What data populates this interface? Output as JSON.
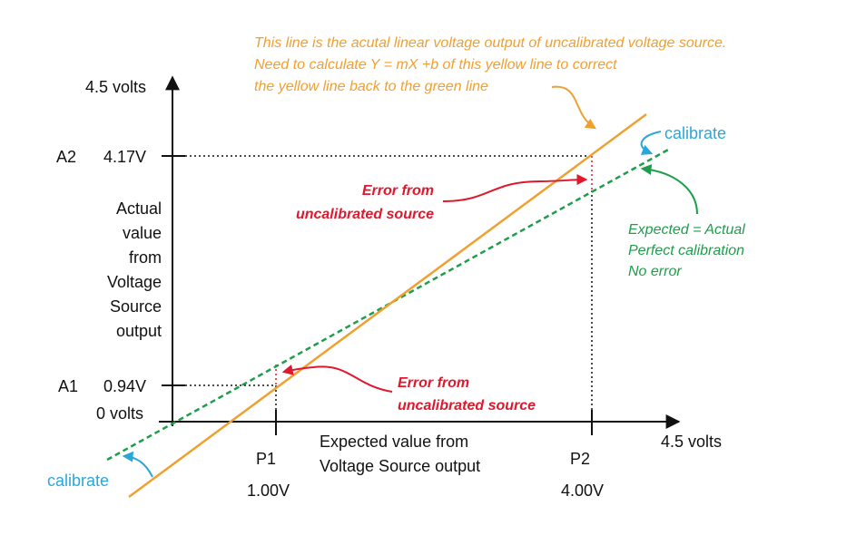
{
  "colors": {
    "actual_line": "#F0A030",
    "expected_line": "#1E9E4A",
    "error_arrow": "#E0182D",
    "calibrate": "#2AA7D8",
    "axis": "#111111"
  },
  "top_note": [
    "This line is the acutal linear voltage output of uncalibrated voltage source.",
    "Need to calculate Y = mX +b of this yellow line to correct",
    "the yellow line back to the green line"
  ],
  "y_axis": {
    "max_label": "4.5 volts",
    "zero_label": "0 volts",
    "title_lines": [
      "Actual",
      "value",
      "from",
      "Voltage",
      "Source",
      "output"
    ],
    "a2_name": "A2",
    "a2_value": "4.17V",
    "a1_name": "A1",
    "a1_value": "0.94V"
  },
  "x_axis": {
    "max_label": "4.5 volts",
    "title_lines": [
      "Expected value from",
      "Voltage Source output"
    ],
    "p1_name": "P1",
    "p1_value": "1.00V",
    "p2_name": "P2",
    "p2_value": "4.00V"
  },
  "annotations": {
    "calibrate_top": "calibrate",
    "calibrate_bottom": "calibrate",
    "error_top": [
      "Error from",
      "uncalibrated source"
    ],
    "error_bottom": [
      "Error from",
      "uncalibrated source"
    ],
    "expected_note": [
      "Expected = Actual",
      "Perfect calibration",
      "No error"
    ]
  }
}
